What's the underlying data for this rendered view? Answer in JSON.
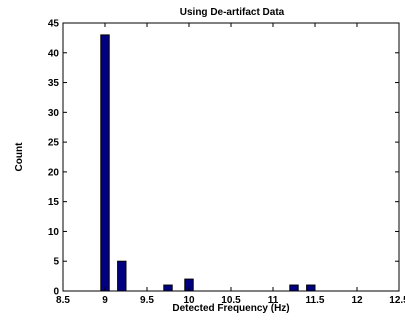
{
  "chart_data": {
    "type": "bar",
    "title": "Using De-artifact Data",
    "xlabel": "Detected Frequency (Hz)",
    "ylabel": "Count",
    "xlim": [
      8.5,
      12.5
    ],
    "ylim": [
      0,
      45
    ],
    "xticks": [
      8.5,
      9,
      9.5,
      10,
      10.5,
      11,
      11.5,
      12,
      12.5
    ],
    "xtick_labels": [
      "8.5",
      "9",
      "9.5",
      "10",
      "10.5",
      "11",
      "11.5",
      "12",
      "12.5"
    ],
    "yticks": [
      0,
      5,
      10,
      15,
      20,
      25,
      30,
      35,
      40,
      45
    ],
    "ytick_labels": [
      "0",
      "5",
      "10",
      "15",
      "20",
      "25",
      "30",
      "35",
      "40",
      "45"
    ],
    "bar_width": 0.1,
    "x": [
      9.0,
      9.2,
      9.75,
      10.0,
      11.25,
      11.45
    ],
    "values": [
      43,
      5,
      1,
      2,
      1,
      1
    ],
    "grid": false,
    "bar_color": "#000080",
    "bar_edge_color": "#000000"
  }
}
